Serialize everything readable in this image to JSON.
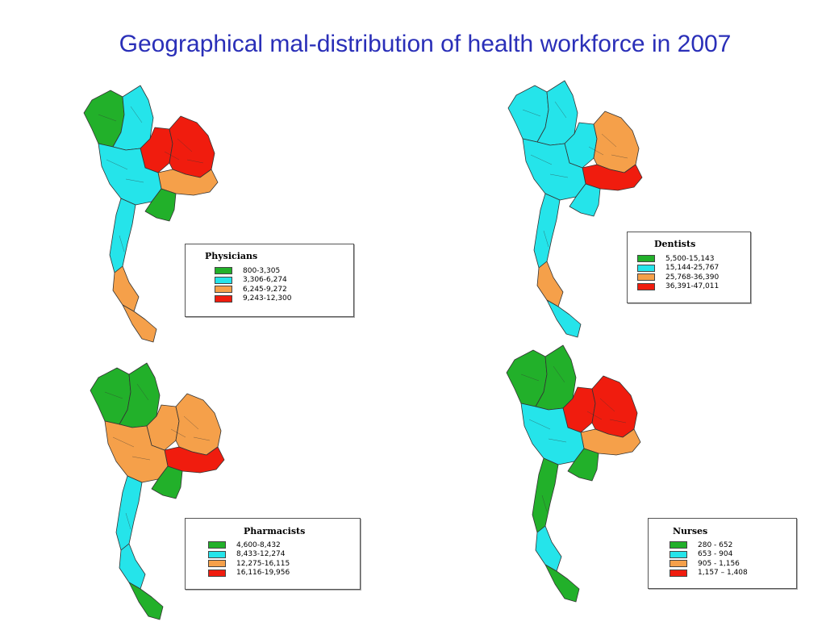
{
  "title": "Geographical mal-distribution of health workforce in 2007",
  "colors": {
    "green": "#22b02a",
    "cyan": "#25e4ea",
    "orange": "#f5a04a",
    "red": "#f01c0e",
    "boundary": "#333333",
    "title": "#2a2fb8"
  },
  "legends": [
    {
      "title": "Physicians",
      "items": [
        {
          "label": "800-3,305",
          "color": "#22b02a"
        },
        {
          "label": "3,306-6,274",
          "color": "#25e4ea"
        },
        {
          "label": "6,245-9,272",
          "color": "#f5a04a"
        },
        {
          "label": "9,243-12,300",
          "color": "#f01c0e"
        }
      ]
    },
    {
      "title": "Dentists",
      "items": [
        {
          "label": "5,500-15,143",
          "color": "#22b02a"
        },
        {
          "label": "15,144-25,767",
          "color": "#25e4ea"
        },
        {
          "label": "25,768-36,390",
          "color": "#f5a04a"
        },
        {
          "label": "36,391-47,011",
          "color": "#f01c0e"
        }
      ]
    },
    {
      "title": "Pharmacists",
      "items": [
        {
          "label": "4,600-8,432",
          "color": "#22b02a"
        },
        {
          "label": "8,433-12,274",
          "color": "#25e4ea"
        },
        {
          "label": "12,275-16,115",
          "color": "#f5a04a"
        },
        {
          "label": "16,116-19,956",
          "color": "#f01c0e"
        }
      ]
    },
    {
      "title": "Nurses",
      "items": [
        {
          "label": "280 - 652",
          "color": "#22b02a"
        },
        {
          "label": "653 - 904",
          "color": "#25e4ea"
        },
        {
          "label": "905 - 1,156",
          "color": "#f5a04a"
        },
        {
          "label": "1,157 – 1,408",
          "color": "#f01c0e"
        }
      ]
    }
  ],
  "maps": [
    {
      "name": "Physicians",
      "fills": {
        "north": "#25e4ea",
        "northwest": "#22b02a",
        "northeast": "#f01c0e",
        "ne_west": "#f01c0e",
        "ne_south": "#f5a04a",
        "central": "#25e4ea",
        "east": "#22b02a",
        "south_upper": "#25e4ea",
        "south_mid": "#f5a04a",
        "south_tip": "#f5a04a"
      }
    },
    {
      "name": "Dentists",
      "fills": {
        "north": "#25e4ea",
        "northwest": "#25e4ea",
        "northeast": "#f5a04a",
        "ne_west": "#25e4ea",
        "ne_south": "#f01c0e",
        "central": "#25e4ea",
        "east": "#25e4ea",
        "south_upper": "#25e4ea",
        "south_mid": "#f5a04a",
        "south_tip": "#25e4ea"
      }
    },
    {
      "name": "Pharmacists",
      "fills": {
        "north": "#22b02a",
        "northwest": "#22b02a",
        "northeast": "#f5a04a",
        "ne_west": "#f5a04a",
        "ne_south": "#f01c0e",
        "central": "#f5a04a",
        "east": "#22b02a",
        "south_upper": "#25e4ea",
        "south_mid": "#25e4ea",
        "south_tip": "#22b02a"
      }
    },
    {
      "name": "Nurses",
      "fills": {
        "north": "#22b02a",
        "northwest": "#22b02a",
        "northeast": "#f01c0e",
        "ne_west": "#f01c0e",
        "ne_south": "#f5a04a",
        "central": "#25e4ea",
        "east": "#22b02a",
        "south_upper": "#22b02a",
        "south_mid": "#25e4ea",
        "south_tip": "#22b02a"
      }
    }
  ]
}
